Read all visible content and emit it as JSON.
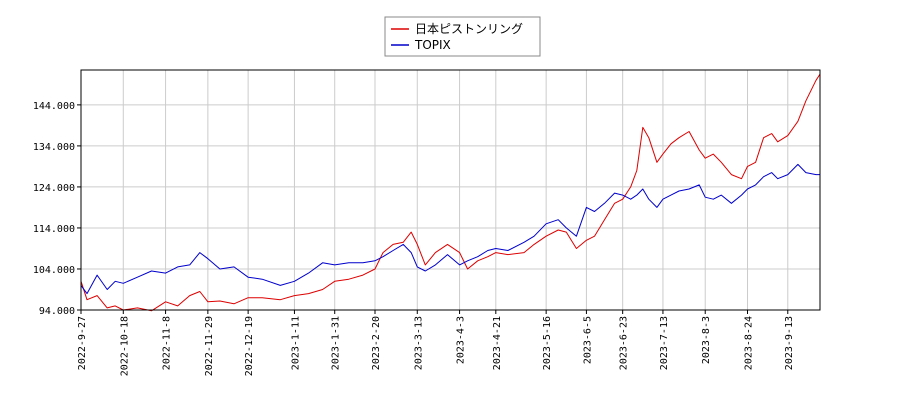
{
  "chart_data": {
    "type": "line",
    "xlim": [
      "2022-09-27",
      "2023-09-29"
    ],
    "ylim": [
      94.0,
      152.5
    ],
    "grid": true,
    "legend_position": "top-center",
    "y_ticks": [
      94.0,
      104.0,
      114.0,
      124.0,
      134.0,
      144.0
    ],
    "y_tick_labels": [
      "94.000",
      "104.000",
      "114.000",
      "124.000",
      "134.000",
      "144.000"
    ],
    "x_ticks": [
      "2022-9-27",
      "2022-10-18",
      "2022-11-8",
      "2022-11-29",
      "2022-12-19",
      "2023-1-11",
      "2023-1-31",
      "2023-2-20",
      "2023-3-13",
      "2023-4-3",
      "2023-4-21",
      "2023-5-16",
      "2023-6-5",
      "2023-6-23",
      "2023-7-13",
      "2023-8-3",
      "2023-8-24",
      "2023-9-13"
    ],
    "series": [
      {
        "name": "日本ピストンリング",
        "color": "#dd0000",
        "x": [
          "2022-09-27",
          "2022-09-30",
          "2022-10-05",
          "2022-10-10",
          "2022-10-14",
          "2022-10-18",
          "2022-10-25",
          "2022-11-01",
          "2022-11-08",
          "2022-11-14",
          "2022-11-20",
          "2022-11-25",
          "2022-11-29",
          "2022-12-05",
          "2022-12-12",
          "2022-12-19",
          "2022-12-26",
          "2023-01-04",
          "2023-01-11",
          "2023-01-18",
          "2023-01-25",
          "2023-01-31",
          "2023-02-07",
          "2023-02-14",
          "2023-02-20",
          "2023-02-24",
          "2023-03-01",
          "2023-03-06",
          "2023-03-10",
          "2023-03-13",
          "2023-03-17",
          "2023-03-22",
          "2023-03-28",
          "2023-04-03",
          "2023-04-07",
          "2023-04-12",
          "2023-04-17",
          "2023-04-21",
          "2023-04-27",
          "2023-05-05",
          "2023-05-10",
          "2023-05-16",
          "2023-05-22",
          "2023-05-26",
          "2023-05-31",
          "2023-06-05",
          "2023-06-09",
          "2023-06-14",
          "2023-06-19",
          "2023-06-23",
          "2023-06-27",
          "2023-06-30",
          "2023-07-03",
          "2023-07-06",
          "2023-07-10",
          "2023-07-13",
          "2023-07-17",
          "2023-07-21",
          "2023-07-26",
          "2023-07-31",
          "2023-08-03",
          "2023-08-07",
          "2023-08-11",
          "2023-08-16",
          "2023-08-21",
          "2023-08-24",
          "2023-08-28",
          "2023-09-01",
          "2023-09-05",
          "2023-09-08",
          "2023-09-13",
          "2023-09-18",
          "2023-09-22",
          "2023-09-27",
          "2023-09-29"
        ],
        "values": [
          101.0,
          96.5,
          97.5,
          94.5,
          95.0,
          94.0,
          94.5,
          93.8,
          96.0,
          95.0,
          97.5,
          98.5,
          96.0,
          96.2,
          95.5,
          97.0,
          97.0,
          96.5,
          97.5,
          98.0,
          99.0,
          101.0,
          101.5,
          102.5,
          104.0,
          108.0,
          110.0,
          110.5,
          113.0,
          110.0,
          105.0,
          108.0,
          110.0,
          108.0,
          104.0,
          106.0,
          107.0,
          108.0,
          107.5,
          108.0,
          110.0,
          112.0,
          113.5,
          113.0,
          109.0,
          111.0,
          112.0,
          116.0,
          120.0,
          121.0,
          124.0,
          128.0,
          138.5,
          136.0,
          130.0,
          132.0,
          134.5,
          136.0,
          137.5,
          133.0,
          131.0,
          132.0,
          130.0,
          127.0,
          126.0,
          129.0,
          130.0,
          136.0,
          137.0,
          135.0,
          136.5,
          140.0,
          145.0,
          150.0,
          151.5
        ]
      },
      {
        "name": "TOPIX",
        "color": "#0000cc",
        "x": [
          "2022-09-27",
          "2022-09-30",
          "2022-10-05",
          "2022-10-10",
          "2022-10-14",
          "2022-10-18",
          "2022-10-25",
          "2022-11-01",
          "2022-11-08",
          "2022-11-14",
          "2022-11-20",
          "2022-11-25",
          "2022-11-29",
          "2022-12-05",
          "2022-12-12",
          "2022-12-19",
          "2022-12-26",
          "2023-01-04",
          "2023-01-11",
          "2023-01-18",
          "2023-01-25",
          "2023-01-31",
          "2023-02-07",
          "2023-02-14",
          "2023-02-20",
          "2023-02-24",
          "2023-03-01",
          "2023-03-06",
          "2023-03-10",
          "2023-03-13",
          "2023-03-17",
          "2023-03-22",
          "2023-03-28",
          "2023-04-03",
          "2023-04-07",
          "2023-04-12",
          "2023-04-17",
          "2023-04-21",
          "2023-04-27",
          "2023-05-05",
          "2023-05-10",
          "2023-05-16",
          "2023-05-22",
          "2023-05-26",
          "2023-05-31",
          "2023-06-05",
          "2023-06-09",
          "2023-06-14",
          "2023-06-19",
          "2023-06-23",
          "2023-06-27",
          "2023-06-30",
          "2023-07-03",
          "2023-07-06",
          "2023-07-10",
          "2023-07-13",
          "2023-07-17",
          "2023-07-21",
          "2023-07-26",
          "2023-07-31",
          "2023-08-03",
          "2023-08-07",
          "2023-08-11",
          "2023-08-16",
          "2023-08-21",
          "2023-08-24",
          "2023-08-28",
          "2023-09-01",
          "2023-09-05",
          "2023-09-08",
          "2023-09-13",
          "2023-09-18",
          "2023-09-22",
          "2023-09-27",
          "2023-09-29"
        ],
        "values": [
          100.0,
          98.0,
          102.5,
          99.0,
          101.0,
          100.5,
          102.0,
          103.5,
          103.0,
          104.5,
          105.0,
          108.0,
          106.5,
          104.0,
          104.5,
          102.0,
          101.5,
          100.0,
          101.0,
          103.0,
          105.5,
          105.0,
          105.5,
          105.5,
          106.0,
          107.0,
          108.5,
          110.0,
          108.0,
          104.5,
          103.5,
          105.0,
          107.5,
          105.0,
          106.0,
          107.0,
          108.5,
          109.0,
          108.5,
          110.5,
          112.0,
          115.0,
          116.0,
          114.0,
          112.0,
          119.0,
          118.0,
          120.0,
          122.5,
          122.0,
          121.0,
          122.0,
          123.5,
          121.0,
          119.0,
          121.0,
          122.0,
          123.0,
          123.5,
          124.5,
          121.5,
          121.0,
          122.0,
          120.0,
          122.0,
          123.5,
          124.5,
          126.5,
          127.5,
          126.0,
          127.0,
          129.5,
          127.5,
          127.0,
          127.0
        ]
      }
    ]
  }
}
